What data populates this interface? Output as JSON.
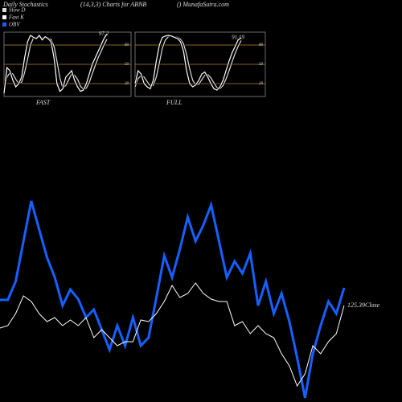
{
  "header": {
    "title": "Daily Stochastics",
    "subtitle": "(14,3,3) Charts for ABNB",
    "source": "() MunafaSutra.com"
  },
  "chart_data": [
    {
      "type": "line",
      "xlabel": "FAST",
      "annotation": "97.2",
      "ylim": [
        0,
        100
      ],
      "yticks": [
        20,
        50,
        80
      ],
      "grid": true,
      "grid_color": "#b8862b",
      "series": [
        {
          "name": "Slow D",
          "color": "#dddddd",
          "values": [
            10,
            30,
            37,
            35,
            27,
            20,
            22,
            37,
            58,
            80,
            91,
            92,
            92,
            91,
            92,
            90,
            89,
            78,
            55,
            29,
            13,
            17,
            26,
            35,
            33,
            27,
            16,
            11,
            13,
            22,
            35,
            48,
            60,
            70,
            80,
            89
          ]
        },
        {
          "name": "Fast K",
          "color": "#ffffff",
          "values": [
            5,
            45,
            40,
            25,
            15,
            20,
            30,
            60,
            85,
            95,
            92,
            90,
            95,
            88,
            93,
            90,
            85,
            60,
            20,
            8,
            12,
            30,
            35,
            40,
            25,
            15,
            8,
            10,
            20,
            35,
            50,
            60,
            70,
            80,
            90,
            97.2
          ]
        }
      ]
    },
    {
      "type": "line",
      "xlabel": "FULL",
      "annotation": "91.19",
      "ylim": [
        0,
        100
      ],
      "yticks": [
        20,
        50,
        80
      ],
      "grid": true,
      "grid_color": "#b8862b",
      "series": [
        {
          "color": "#dddddd",
          "values": [
            15,
            28,
            32,
            30,
            23,
            16,
            17,
            30,
            52,
            75,
            88,
            93,
            94,
            93,
            92,
            89,
            82,
            65,
            43,
            25,
            18,
            19,
            26,
            33,
            34,
            29,
            21,
            14,
            12,
            17,
            27,
            40,
            54,
            67,
            78,
            87
          ]
        },
        {
          "color": "#ffffff",
          "values": [
            20,
            40,
            35,
            20,
            15,
            12,
            25,
            55,
            80,
            92,
            94,
            95,
            94,
            92,
            90,
            85,
            70,
            40,
            20,
            15,
            18,
            25,
            35,
            38,
            30,
            20,
            12,
            10,
            15,
            25,
            40,
            55,
            68,
            78,
            88,
            91.19
          ]
        }
      ]
    },
    {
      "type": "line",
      "annotation": "125.39Close",
      "series": [
        {
          "name": "OBV",
          "color": "#1560ff",
          "values": [
            122,
            122,
            145,
            195,
            245,
            210,
            175,
            150,
            115,
            135,
            123,
            100,
            110,
            85,
            60,
            90,
            65,
            100,
            65,
            75,
            125,
            177,
            150,
            185,
            225,
            195,
            215,
            240,
            195,
            150,
            170,
            155,
            180,
            115,
            145,
            105,
            130,
            95,
            50,
            0,
            55,
            90,
            120,
            105,
            137
          ]
        },
        {
          "color": "#ffffff",
          "values": [
            87,
            90,
            105,
            127,
            120,
            105,
            95,
            100,
            90,
            97,
            90,
            100,
            75,
            85,
            75,
            65,
            70,
            70,
            97,
            95,
            105,
            120,
            140,
            125,
            130,
            143,
            130,
            123,
            120,
            120,
            90,
            95,
            80,
            90,
            80,
            75,
            55,
            40,
            15,
            30,
            65,
            55,
            70,
            80,
            115
          ]
        }
      ]
    }
  ]
}
